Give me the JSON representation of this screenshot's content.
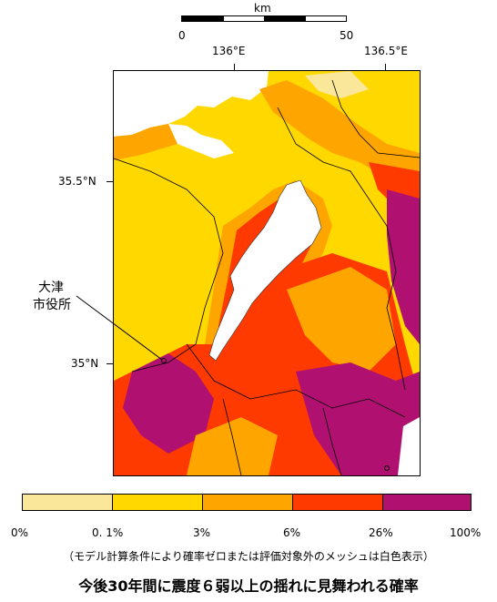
{
  "scale": {
    "unit": "km",
    "start": "0",
    "end": "50"
  },
  "longitudes": [
    "136°E",
    "136.5°E"
  ],
  "latitudes": [
    "35.5°N",
    "35°N"
  ],
  "city_label": {
    "line1": "大津",
    "line2": "市役所"
  },
  "legend": {
    "classes": [
      {
        "range": "0%–0.1%",
        "color": "#fbe79a"
      },
      {
        "range": "0.1%–3%",
        "color": "#ffd800"
      },
      {
        "range": "3%–6%",
        "color": "#ffa500"
      },
      {
        "range": "6%–26%",
        "color": "#ff3a00"
      },
      {
        "range": "26%–100%",
        "color": "#b01070"
      }
    ],
    "ticks": [
      "0%",
      "0. 1%",
      "3%",
      "6%",
      "26%",
      "100%"
    ]
  },
  "note": "（モデル計算条件により確率ゼロまたは評価対象外のメッシュは白色表示）",
  "title": "今後30年間に震度６弱以上の揺れに見舞われる確率"
}
